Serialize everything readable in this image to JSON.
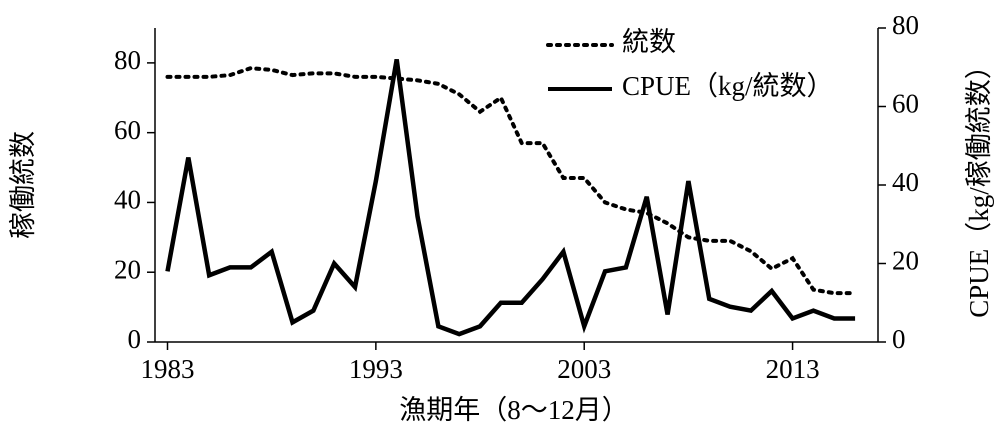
{
  "chart_data": {
    "type": "line",
    "x_label": "漁期年（8〜12月）",
    "y_label": "稼働統数",
    "y2_label": "CPUE（kg/稼働統数）",
    "x": [
      1983,
      1984,
      1985,
      1986,
      1987,
      1988,
      1989,
      1990,
      1991,
      1992,
      1993,
      1994,
      1995,
      1996,
      1997,
      1998,
      1999,
      2000,
      2001,
      2002,
      2003,
      2004,
      2005,
      2006,
      2007,
      2008,
      2009,
      2010,
      2011,
      2012,
      2013,
      2014,
      2015,
      2016
    ],
    "xlim": [
      1982.4,
      2017.1
    ],
    "xticks": [
      1983,
      1993,
      2003,
      2013
    ],
    "ylim": [
      0,
      90
    ],
    "yticks": [
      0,
      20,
      40,
      60,
      80
    ],
    "y2lim": [
      0,
      80
    ],
    "y2ticks": [
      0,
      20,
      40,
      60,
      80
    ],
    "legend": "upper right",
    "series": [
      {
        "name": "統数",
        "color": "#000000",
        "style": "dotted",
        "values": [
          76,
          76,
          76,
          76.5,
          78.5,
          78,
          76.5,
          77,
          77,
          76,
          76,
          75.5,
          75,
          74,
          71,
          66,
          70,
          57,
          57,
          47,
          47,
          40,
          38,
          37,
          34,
          30,
          29,
          29,
          26,
          21,
          24,
          15,
          14,
          14
        ]
      },
      {
        "name": "CPUE（kg/統数）",
        "color": "#000000",
        "style": "solid",
        "axis": "y2",
        "values": [
          18,
          47,
          17,
          19,
          19,
          23,
          5,
          8,
          20,
          14,
          41,
          72,
          32,
          4,
          2,
          4,
          10,
          10,
          16,
          23,
          4,
          18,
          19,
          37,
          7,
          41,
          11,
          9,
          8,
          13,
          6,
          8,
          6,
          6
        ]
      }
    ]
  }
}
